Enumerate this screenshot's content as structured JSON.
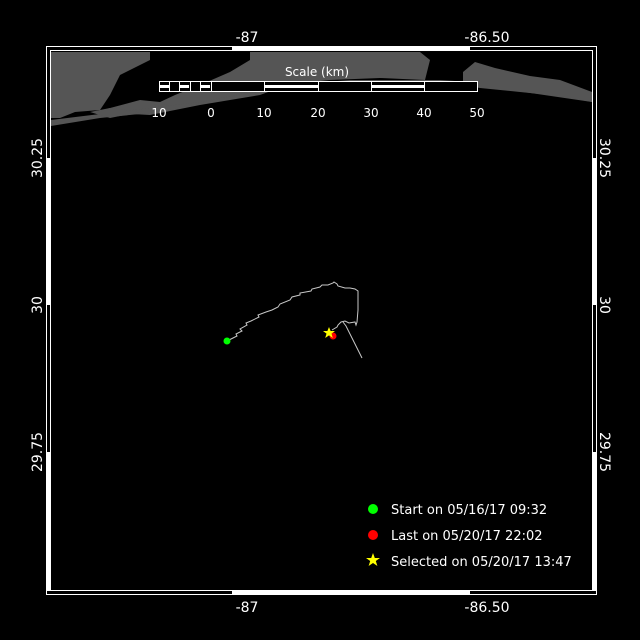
{
  "map": {
    "lon_ticks": [
      "-87",
      "-86.50"
    ],
    "lat_ticks": [
      "30.25",
      "30",
      "29.75"
    ],
    "scale": {
      "title": "Scale (km)",
      "labels": [
        "10",
        "0",
        "10",
        "20",
        "30",
        "40",
        "50"
      ]
    },
    "legend": [
      {
        "label": "Start on 05/16/17 09:32",
        "color": "#00ff00",
        "marker": "circle"
      },
      {
        "label": "Last on 05/20/17 22:02",
        "color": "#ff0000",
        "marker": "circle"
      },
      {
        "label": "Selected on 05/20/17 13:47",
        "color": "#ffff00",
        "marker": "star"
      }
    ],
    "colors": {
      "land": "#555555",
      "water": "#000000",
      "track": "#c8c8c8"
    }
  }
}
